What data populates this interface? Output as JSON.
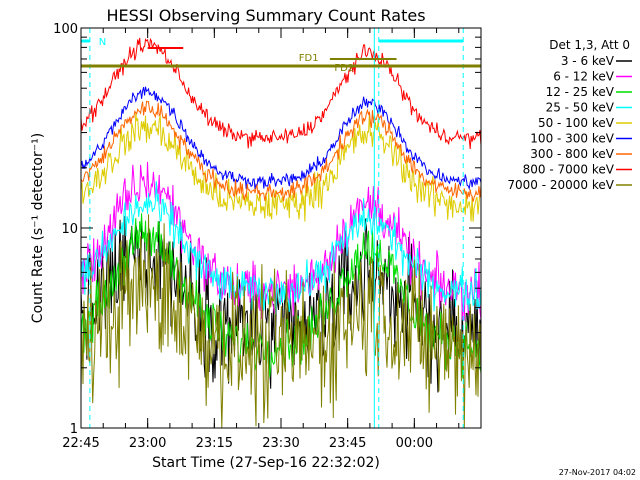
{
  "chart_data": {
    "type": "line",
    "title": "HESSI Observing Summary Count Rates",
    "xlabel": "Start Time (27-Sep-16 22:32:02)",
    "ylabel": "Count Rate (s⁻¹ detector⁻¹)",
    "yscale": "log",
    "ylim": [
      1,
      100
    ],
    "ytick_labels": [
      "1",
      "10",
      "100"
    ],
    "xlim_minutes": [
      -15,
      75
    ],
    "xticks": [
      {
        "label": "22:45",
        "minute": -15
      },
      {
        "label": "23:00",
        "minute": 0
      },
      {
        "label": "23:15",
        "minute": 15
      },
      {
        "label": "23:30",
        "minute": 30
      },
      {
        "label": "23:45",
        "minute": 45
      },
      {
        "label": "00:00",
        "minute": 60
      }
    ],
    "legend_title": "Det 1,3, Att 0",
    "series": [
      {
        "name": "3 - 6 keV",
        "color": "#000000",
        "night": 3.0,
        "peak1": 8.0,
        "peak2": 6.0,
        "noise": 0.55
      },
      {
        "name": "6 - 12 keV",
        "color": "#ff00ff",
        "night": 4.8,
        "peak1": 17.0,
        "peak2": 13.0,
        "noise": 0.25
      },
      {
        "name": "12 - 25 keV",
        "color": "#00dd00",
        "night": 2.6,
        "peak1": 9.0,
        "peak2": 8.0,
        "noise": 0.25
      },
      {
        "name": "25 - 50 keV",
        "color": "#00ffff",
        "night": 4.8,
        "peak1": 13.0,
        "peak2": 11.0,
        "noise": 0.2
      },
      {
        "name": "50 - 100 keV",
        "color": "#ddcc00",
        "night": 13.0,
        "peak1": 32.0,
        "peak2": 30.0,
        "noise": 0.18
      },
      {
        "name": "100 - 300 keV",
        "color": "#0000ff",
        "night": 17.0,
        "peak1": 48.0,
        "peak2": 42.0,
        "noise": 0.07
      },
      {
        "name": "300 - 800 keV",
        "color": "#ff6600",
        "night": 15.0,
        "peak1": 40.0,
        "peak2": 36.0,
        "noise": 0.09
      },
      {
        "name": "800 - 7000 keV",
        "color": "#ff0000",
        "night": 28.0,
        "peak1": 83.0,
        "peak2": 75.0,
        "noise": 0.08
      },
      {
        "name": "7000 - 20000 keV",
        "color": "#808000",
        "night": 2.5,
        "peak1": 5.0,
        "peak2": 4.0,
        "noise": 0.7
      }
    ],
    "flags": [
      {
        "label": "N",
        "color": "#00ffff"
      },
      {
        "label": "FD1",
        "color": "#808000"
      },
      {
        "label": "FD2",
        "color": "#808000"
      }
    ],
    "night_boundaries_minutes": [
      -13,
      52,
      71
    ],
    "footer_date": "27-Nov-2017 04:02"
  }
}
